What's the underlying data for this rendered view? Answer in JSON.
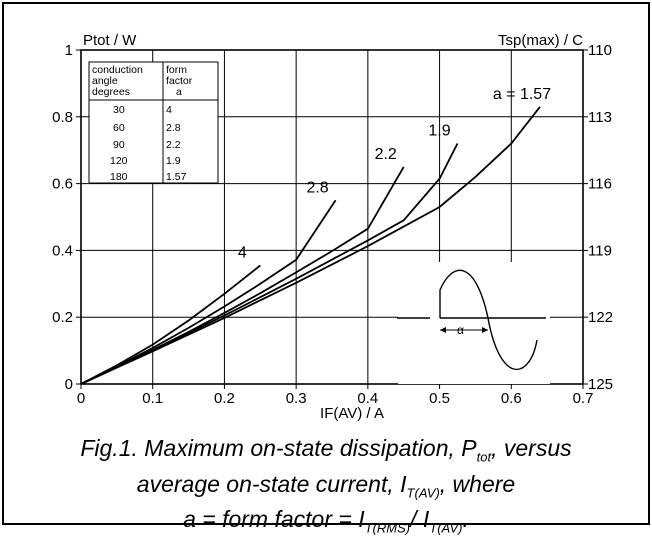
{
  "chart_data": {
    "type": "line",
    "xlabel": "IF(AV) / A",
    "ylabel": "Ptot / W",
    "y2label": "Tsp(max) / C",
    "xlim": [
      0,
      0.7
    ],
    "ylim": [
      0,
      1
    ],
    "x_ticks": [
      "0",
      "0.1",
      "0.2",
      "0.3",
      "0.4",
      "0.5",
      "0.6",
      "0.7"
    ],
    "y_ticks": [
      "0",
      "0.2",
      "0.4",
      "0.6",
      "0.8",
      "1"
    ],
    "y2_ticks": [
      "125",
      "122",
      "119",
      "116",
      "113",
      "110"
    ],
    "grid": true,
    "series": [
      {
        "name": "4",
        "label": "4",
        "x": [
          0,
          0.05,
          0.1,
          0.15,
          0.2,
          0.25
        ],
        "y": [
          0,
          0.056,
          0.118,
          0.19,
          0.27,
          0.355
        ]
      },
      {
        "name": "2.8",
        "label": "2.8",
        "x": [
          0,
          0.05,
          0.1,
          0.15,
          0.2,
          0.25,
          0.3,
          0.355
        ],
        "y": [
          0,
          0.052,
          0.108,
          0.168,
          0.232,
          0.3,
          0.372,
          0.55
        ]
      },
      {
        "name": "2.2",
        "label": "2.2",
        "x": [
          0,
          0.05,
          0.1,
          0.15,
          0.2,
          0.25,
          0.3,
          0.35,
          0.4,
          0.45
        ],
        "y": [
          0,
          0.05,
          0.102,
          0.156,
          0.213,
          0.272,
          0.334,
          0.398,
          0.465,
          0.65
        ]
      },
      {
        "name": "1.9",
        "label": "1.9",
        "x": [
          0,
          0.1,
          0.2,
          0.3,
          0.4,
          0.45,
          0.5,
          0.525
        ],
        "y": [
          0,
          0.1,
          0.205,
          0.315,
          0.43,
          0.49,
          0.615,
          0.72
        ]
      },
      {
        "name": "1.57",
        "label": "a = 1.57",
        "x": [
          0,
          0.1,
          0.2,
          0.3,
          0.4,
          0.5,
          0.55,
          0.6,
          0.64
        ],
        "y": [
          0,
          0.098,
          0.198,
          0.303,
          0.413,
          0.53,
          0.62,
          0.72,
          0.83
        ]
      }
    ],
    "legend_table": {
      "headers": [
        [
          "conduction",
          "angle",
          "degrees"
        ],
        [
          "form",
          "factor",
          "a"
        ]
      ],
      "rows": [
        [
          "30",
          "4"
        ],
        [
          "60",
          "2.8"
        ],
        [
          "90",
          "2.2"
        ],
        [
          "120",
          "1.9"
        ],
        [
          "180",
          "1.57"
        ]
      ]
    },
    "inset_label": "α"
  },
  "caption": {
    "line1_a": "Fig.1.  Maximum on-state dissipation, P",
    "line1_sub": "tot",
    "line1_b": ", versus",
    "line2_a": "average on-state current, I",
    "line2_sub": "T(AV)",
    "line2_b": ", where",
    "line3_a": "a = form factor = I",
    "line3_sub1": "T(RMS)",
    "line3_mid": "/ I",
    "line3_sub2": "T(AV)",
    "line3_b": "."
  }
}
